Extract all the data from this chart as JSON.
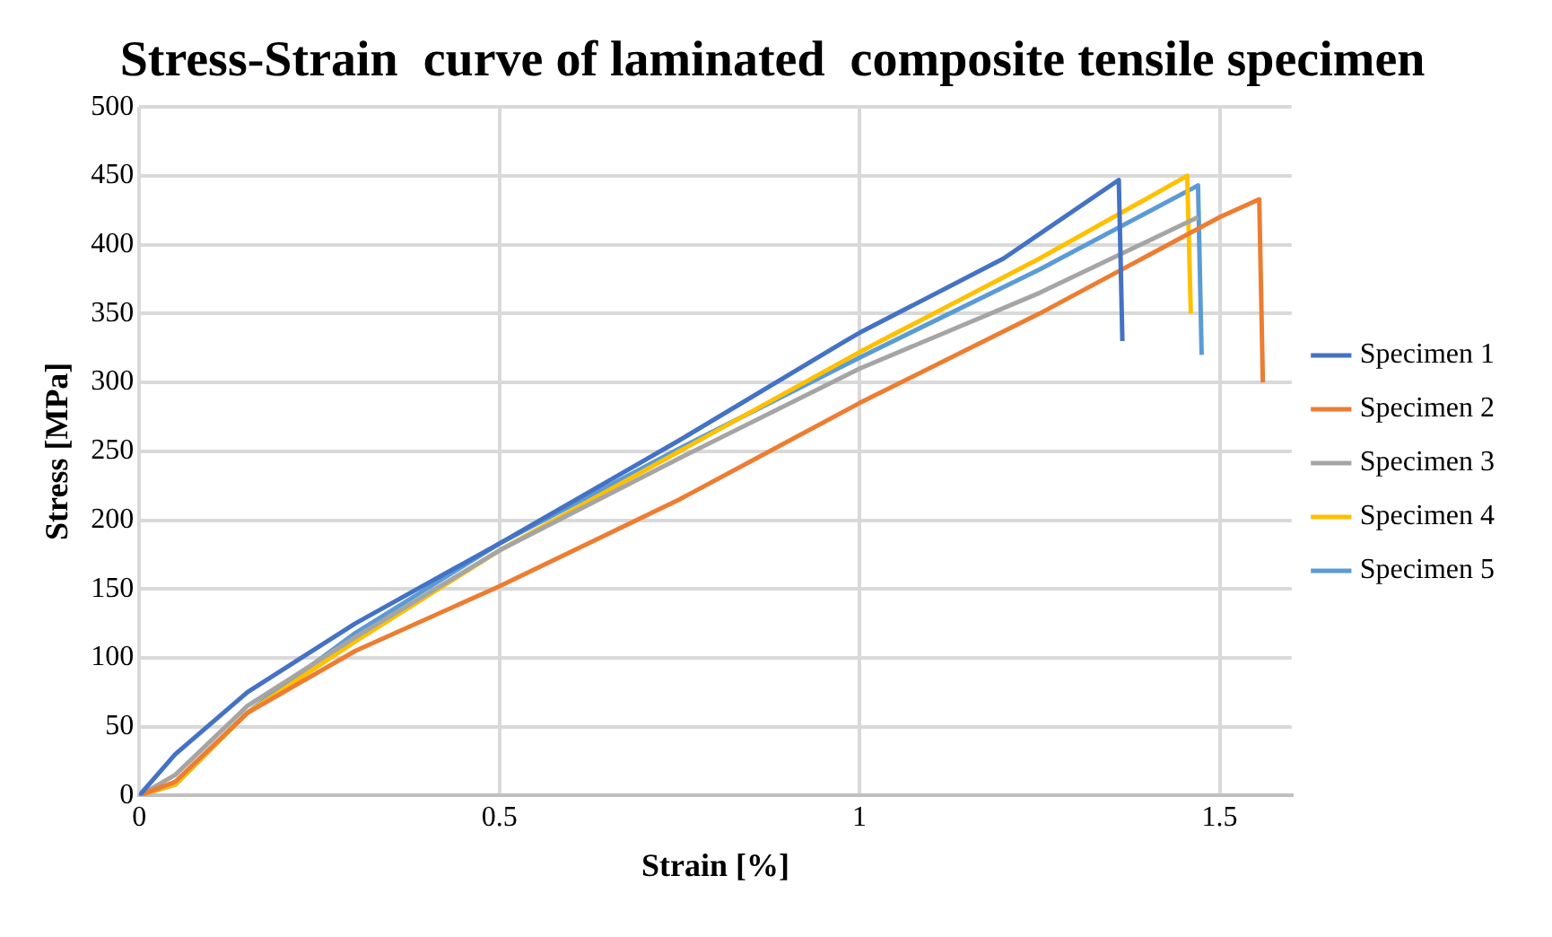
{
  "chart_data": {
    "type": "line",
    "title": "Stress-Strain  curve of laminated  composite tensile specimen",
    "xlabel": "Strain [%]",
    "ylabel": "Stress [MPa]",
    "xlim": [
      0,
      1.6
    ],
    "xticks": [
      0,
      0.5,
      1,
      1.5
    ],
    "ylim": [
      0,
      500
    ],
    "yticks": [
      0,
      50,
      100,
      150,
      200,
      250,
      300,
      350,
      400,
      450,
      500
    ],
    "grid": true,
    "legend": "right",
    "marker": "none",
    "line_style": "solid",
    "series": [
      {
        "name": "Specimen 1",
        "color": "#4472c4",
        "x": [
          0,
          0.05,
          0.15,
          0.3,
          0.5,
          0.75,
          0.98,
          1.0,
          1.2,
          1.36,
          1.365
        ],
        "values": [
          0,
          30,
          75,
          125,
          183,
          258,
          330,
          336,
          390,
          447,
          330
        ]
      },
      {
        "name": "Specimen 2",
        "color": "#ed7d31",
        "x": [
          0,
          0.05,
          0.15,
          0.3,
          0.5,
          0.75,
          1.0,
          1.25,
          1.5,
          1.555,
          1.56
        ],
        "values": [
          0,
          10,
          60,
          105,
          152,
          215,
          285,
          350,
          420,
          433,
          300
        ]
      },
      {
        "name": "Specimen 3",
        "color": "#a5a5a5",
        "x": [
          0,
          0.05,
          0.15,
          0.3,
          0.5,
          0.75,
          1.0,
          1.25,
          1.47
        ],
        "values": [
          0,
          15,
          65,
          115,
          178,
          245,
          310,
          365,
          420
        ]
      },
      {
        "name": "Specimen 4",
        "color": "#ffc000",
        "x": [
          0,
          0.05,
          0.15,
          0.3,
          0.5,
          0.75,
          1.0,
          1.25,
          1.455,
          1.46
        ],
        "values": [
          0,
          8,
          60,
          112,
          178,
          250,
          322,
          390,
          450,
          350
        ]
      },
      {
        "name": "Specimen 5",
        "color": "#5b9bd5",
        "x": [
          0,
          0.05,
          0.15,
          0.3,
          0.5,
          0.75,
          1.0,
          1.25,
          1.47,
          1.475
        ],
        "values": [
          0,
          8,
          60,
          118,
          183,
          252,
          318,
          382,
          443,
          320
        ]
      }
    ]
  }
}
